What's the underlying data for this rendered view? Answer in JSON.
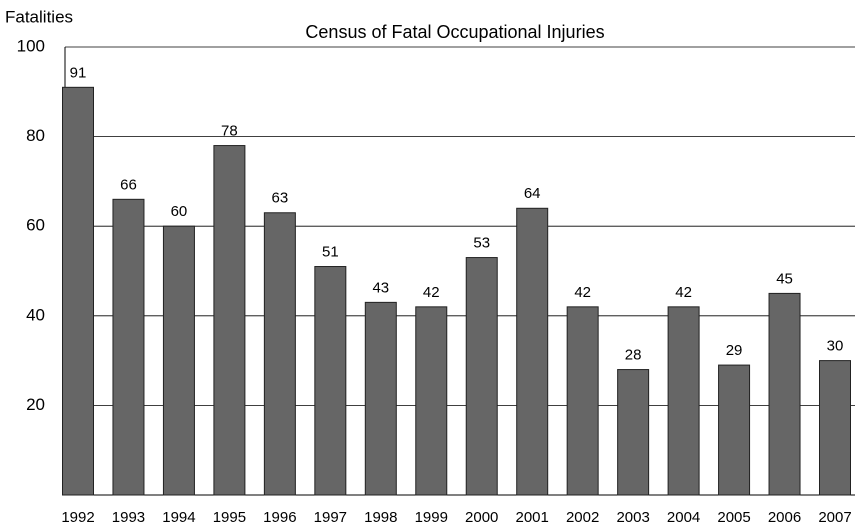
{
  "chart_data": {
    "type": "bar",
    "title": "Census of Fatal Occupational Injuries",
    "y_label": "Fatalities",
    "categories": [
      "1992",
      "1993",
      "1994",
      "1995",
      "1996",
      "1997",
      "1998",
      "1999",
      "2000",
      "2001",
      "2002",
      "2003",
      "2004",
      "2005",
      "2006",
      "2007"
    ],
    "values": [
      91,
      66,
      60,
      78,
      63,
      51,
      43,
      42,
      53,
      64,
      42,
      28,
      42,
      29,
      45,
      30
    ],
    "color": "#666666",
    "ylim": [
      0,
      100
    ],
    "yticks": [
      20,
      40,
      60,
      80,
      100
    ],
    "grid": true
  }
}
